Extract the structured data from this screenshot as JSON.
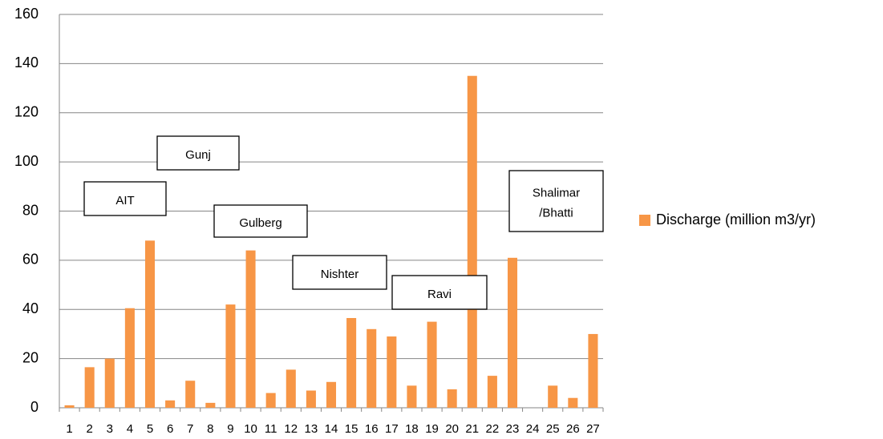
{
  "chart_data": {
    "type": "bar",
    "categories": [
      "1",
      "2",
      "3",
      "4",
      "5",
      "6",
      "7",
      "8",
      "9",
      "10",
      "11",
      "12",
      "13",
      "14",
      "15",
      "16",
      "17",
      "18",
      "19",
      "20",
      "21",
      "22",
      "23",
      "24",
      "25",
      "26",
      "27"
    ],
    "series": [
      {
        "name": "Discharge (million m3/yr)",
        "color": "#f79646",
        "values": [
          1,
          16.5,
          20,
          40.5,
          68,
          3,
          11,
          2,
          42,
          64,
          6,
          15.5,
          7,
          10.5,
          36.5,
          32,
          29,
          9,
          35,
          7.5,
          135,
          13,
          61,
          0,
          9,
          4,
          30
        ]
      }
    ],
    "ylim": [
      0,
      160
    ],
    "yticks": [
      0,
      20,
      40,
      60,
      80,
      100,
      120,
      140,
      160
    ],
    "grid": true,
    "legend": "right",
    "annotations": [
      [
        "AIT"
      ],
      [
        "Gunj"
      ],
      [
        "Gulberg"
      ],
      [
        "Nishter"
      ],
      [
        "Ravi"
      ],
      [
        "Shalimar",
        "/Bhatti"
      ]
    ]
  }
}
